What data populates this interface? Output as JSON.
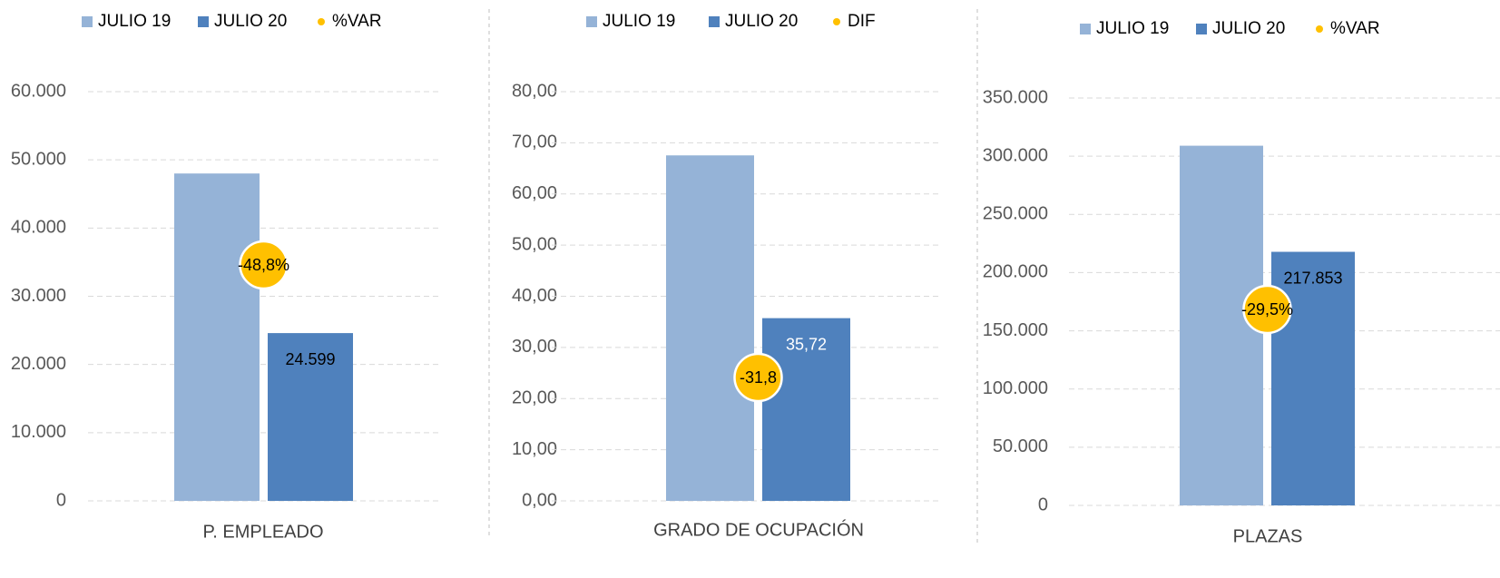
{
  "chart_data": [
    {
      "type": "bar",
      "categories": [
        "P. EMPLEADO"
      ],
      "series": [
        {
          "name": "JULIO 19",
          "color": "#95b3d7",
          "values": [
            48000
          ]
        },
        {
          "name": "JULIO 20",
          "color": "#4f81bd",
          "values": [
            24599
          ],
          "value_labels": [
            "24.599"
          ],
          "label_color": "#000000"
        },
        {
          "name": "%VAR",
          "type": "scatter",
          "color": "#ffc000",
          "values": [
            -48.8
          ],
          "value_labels": [
            "-48,8%"
          ]
        }
      ],
      "ylim": [
        0,
        60000
      ],
      "yticks": [
        0,
        {
          "value": 10000,
          "label": "10.000"
        },
        {
          "value": 20000,
          "label": "20.000"
        },
        {
          "value": 30000,
          "label": "30.000"
        },
        {
          "value": 40000,
          "label": "40.000"
        },
        {
          "value": 50000,
          "label": "50.000"
        },
        {
          "value": 60000,
          "label": "60.000"
        }
      ],
      "grid": true
    },
    {
      "type": "bar",
      "categories": [
        "GRADO DE OCUPACIÓN"
      ],
      "series": [
        {
          "name": "JULIO 19",
          "color": "#95b3d7",
          "values": [
            67.54
          ]
        },
        {
          "name": "JULIO 20",
          "color": "#4f81bd",
          "values": [
            35.72
          ],
          "value_labels": [
            "35,72"
          ],
          "label_color": "#ffffff"
        },
        {
          "name": "DIF",
          "type": "scatter",
          "color": "#ffc000",
          "values": [
            -31.8
          ],
          "value_labels": [
            "-31,8"
          ]
        }
      ],
      "ylim": [
        0,
        80
      ],
      "yticks": [
        {
          "value": 0,
          "label": "0,00"
        },
        {
          "value": 10,
          "label": "10,00"
        },
        {
          "value": 20,
          "label": "20,00"
        },
        {
          "value": 30,
          "label": "30,00"
        },
        {
          "value": 40,
          "label": "40,00"
        },
        {
          "value": 50,
          "label": "50,00"
        },
        {
          "value": 60,
          "label": "60,00"
        },
        {
          "value": 70,
          "label": "70,00"
        },
        {
          "value": 80,
          "label": "80,00"
        }
      ],
      "grid": true
    },
    {
      "type": "bar",
      "categories": [
        "PLAZAS"
      ],
      "series": [
        {
          "name": "JULIO 19",
          "color": "#95b3d7",
          "values": [
            309000
          ]
        },
        {
          "name": "JULIO 20",
          "color": "#4f81bd",
          "values": [
            217853
          ],
          "value_labels": [
            "217.853"
          ],
          "label_color": "#000000"
        },
        {
          "name": "%VAR",
          "type": "scatter",
          "color": "#ffc000",
          "values": [
            -29.5
          ],
          "value_labels": [
            "-29,5%"
          ]
        }
      ],
      "ylim": [
        0,
        350000
      ],
      "yticks": [
        0,
        {
          "value": 50000,
          "label": "50.000"
        },
        {
          "value": 100000,
          "label": "100.000"
        },
        {
          "value": 150000,
          "label": "150.000"
        },
        {
          "value": 200000,
          "label": "200.000"
        },
        {
          "value": 250000,
          "label": "250.000"
        },
        {
          "value": 300000,
          "label": "300.000"
        },
        {
          "value": 350000,
          "label": "350.000"
        }
      ],
      "grid": true
    }
  ]
}
